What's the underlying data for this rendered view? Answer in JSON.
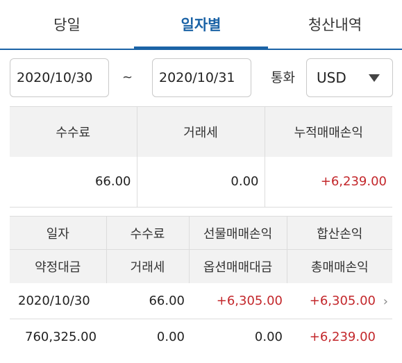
{
  "tabs": [
    {
      "label": "당일",
      "active": false
    },
    {
      "label": "일자별",
      "active": true
    },
    {
      "label": "청산내역",
      "active": false
    }
  ],
  "filter": {
    "start_date": "2020/10/30",
    "separator": "~",
    "end_date": "2020/10/31",
    "currency_label": "통화",
    "currency_value": "USD"
  },
  "summary": {
    "headers": [
      "수수료",
      "거래세",
      "누적매매손익"
    ],
    "values": [
      "66.00",
      "0.00",
      "+6,239.00"
    ]
  },
  "detail": {
    "headers_row1": [
      "일자",
      "수수료",
      "선물매매손익",
      "합산손익"
    ],
    "headers_row2": [
      "약정대금",
      "거래세",
      "옵션매매대금",
      "총매매손익"
    ],
    "row1": [
      "2020/10/30",
      "66.00",
      "+6,305.00",
      "+6,305.00"
    ],
    "row2": [
      "760,325.00",
      "0.00",
      "0.00",
      "+6,239.00"
    ]
  },
  "colors": {
    "accent": "#1b63a6",
    "positive": "#c3272b",
    "header_bg": "#f2f2f2"
  }
}
